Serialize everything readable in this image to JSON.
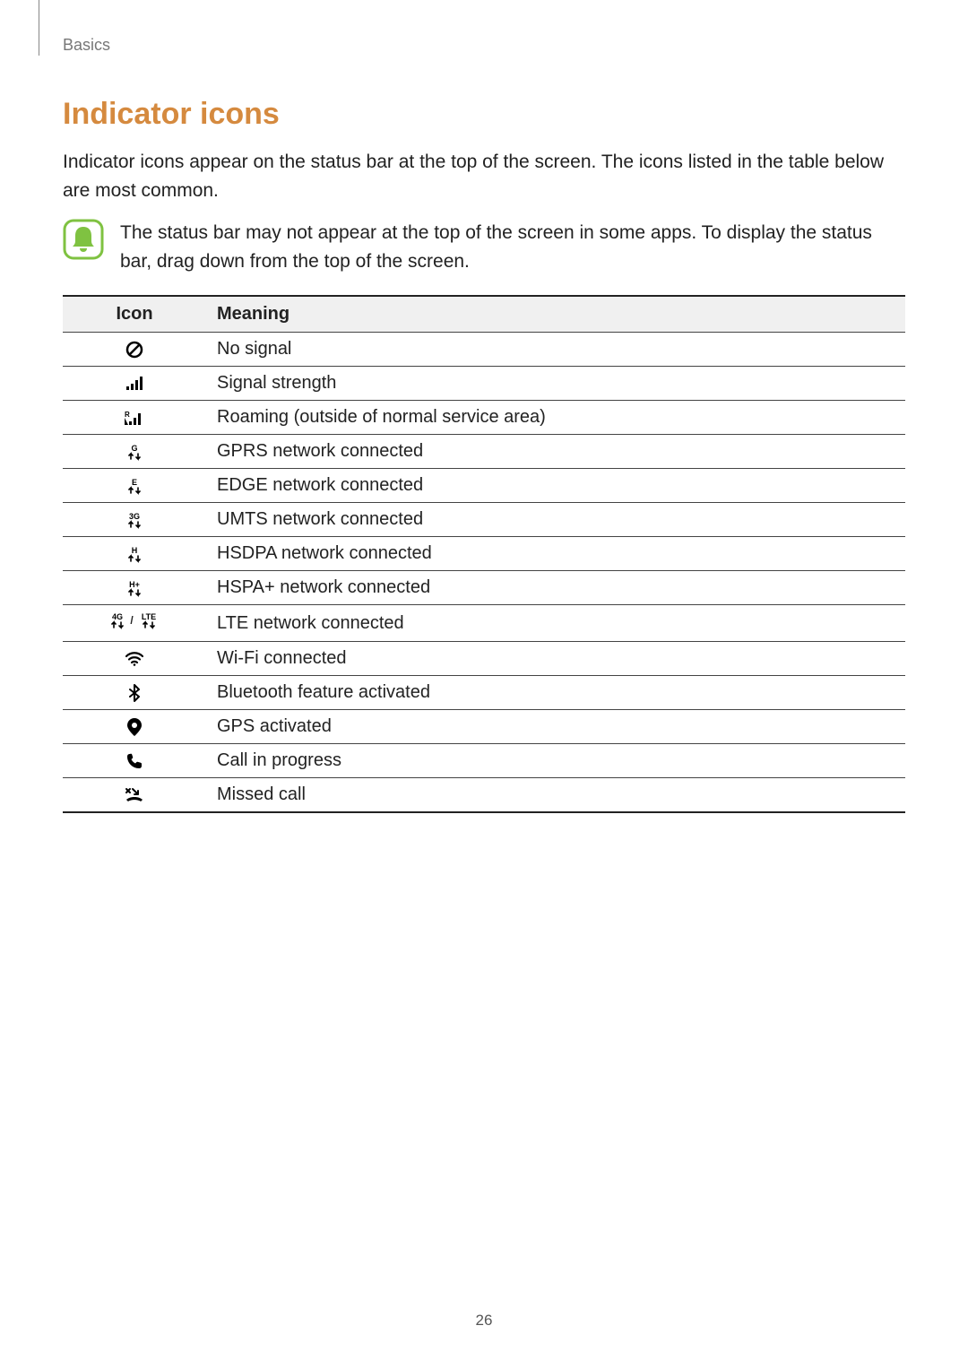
{
  "breadcrumb": "Basics",
  "section_title": "Indicator icons",
  "intro_paragraph": "Indicator icons appear on the status bar at the top of the screen. The icons listed in the table below are most common.",
  "note_text": "The status bar may not appear at the top of the screen in some apps. To display the status bar, drag down from the top of the screen.",
  "table": {
    "header_icon": "Icon",
    "header_meaning": "Meaning",
    "rows": [
      {
        "icon": "no-signal",
        "meaning": "No signal"
      },
      {
        "icon": "signal",
        "meaning": "Signal strength"
      },
      {
        "icon": "roaming",
        "meaning": "Roaming (outside of normal service area)"
      },
      {
        "icon": "gprs",
        "meaning": "GPRS network connected"
      },
      {
        "icon": "edge",
        "meaning": "EDGE network connected"
      },
      {
        "icon": "umts",
        "meaning": "UMTS network connected"
      },
      {
        "icon": "hsdpa",
        "meaning": "HSDPA network connected"
      },
      {
        "icon": "hspa-plus",
        "meaning": "HSPA+ network connected"
      },
      {
        "icon": "lte",
        "meaning": "LTE network connected"
      },
      {
        "icon": "wifi",
        "meaning": "Wi-Fi connected"
      },
      {
        "icon": "bluetooth",
        "meaning": "Bluetooth feature activated"
      },
      {
        "icon": "gps",
        "meaning": "GPS activated"
      },
      {
        "icon": "call",
        "meaning": "Call in progress"
      },
      {
        "icon": "missed-call",
        "meaning": "Missed call"
      }
    ]
  },
  "page_number": "26",
  "colors": {
    "heading": "#d58a3f",
    "text": "#222222",
    "note_border": "#7fc241",
    "note_fill": "#d9e9c6",
    "table_header_bg": "#f0f0f0"
  }
}
